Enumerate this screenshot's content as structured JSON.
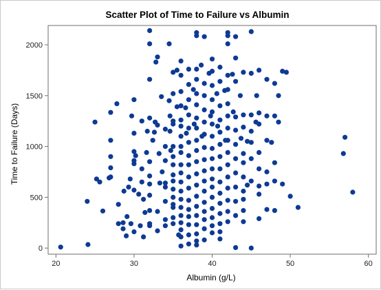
{
  "chart_data": {
    "type": "scatter",
    "title": "Scatter Plot of Time to Failure vs Albumin",
    "xlabel": "Albumin (g/L)",
    "ylabel": "Time to Failure (Days)",
    "xlim": [
      19,
      61
    ],
    "ylim": [
      -60,
      2190
    ],
    "xticks": [
      20,
      30,
      40,
      50,
      60
    ],
    "yticks": [
      0,
      500,
      1000,
      1500,
      2000
    ],
    "grid": false,
    "marker_color": "#0d3a94",
    "points": [
      [
        20.6,
        10
      ],
      [
        24.1,
        35
      ],
      [
        24.0,
        460
      ],
      [
        25.0,
        1240
      ],
      [
        25.2,
        680
      ],
      [
        25.6,
        650
      ],
      [
        26.0,
        365
      ],
      [
        26.8,
        690
      ],
      [
        27.0,
        700
      ],
      [
        27.0,
        790
      ],
      [
        27.0,
        900
      ],
      [
        27.0,
        1060
      ],
      [
        27.0,
        1335
      ],
      [
        27.8,
        1420
      ],
      [
        28.0,
        430
      ],
      [
        28.0,
        240
      ],
      [
        28.6,
        250
      ],
      [
        28.6,
        190
      ],
      [
        28.7,
        560
      ],
      [
        29.0,
        120
      ],
      [
        29.1,
        310
      ],
      [
        29.3,
        600
      ],
      [
        29.5,
        680
      ],
      [
        29.6,
        240
      ],
      [
        29.7,
        1300
      ],
      [
        30.0,
        160
      ],
      [
        30.0,
        570
      ],
      [
        30.0,
        830
      ],
      [
        30.0,
        860
      ],
      [
        30.0,
        950
      ],
      [
        30.0,
        1130
      ],
      [
        30.0,
        1460
      ],
      [
        30.2,
        910
      ],
      [
        30.6,
        530
      ],
      [
        30.8,
        220
      ],
      [
        31.0,
        650
      ],
      [
        31.0,
        780
      ],
      [
        31.0,
        1250
      ],
      [
        31.2,
        110
      ],
      [
        31.2,
        480
      ],
      [
        31.4,
        350
      ],
      [
        31.6,
        940
      ],
      [
        31.7,
        1150
      ],
      [
        32.0,
        2140
      ],
      [
        32.0,
        2010
      ],
      [
        32.0,
        1660
      ],
      [
        32.0,
        1280
      ],
      [
        32.0,
        850
      ],
      [
        32.0,
        710
      ],
      [
        32.0,
        630
      ],
      [
        32.0,
        520
      ],
      [
        32.0,
        370
      ],
      [
        32.0,
        240
      ],
      [
        32.0,
        220
      ],
      [
        32.4,
        1060
      ],
      [
        32.6,
        1140
      ],
      [
        32.7,
        1240
      ],
      [
        32.8,
        1830
      ],
      [
        33.0,
        1880
      ],
      [
        33.0,
        1210
      ],
      [
        33.0,
        360
      ],
      [
        33.0,
        170
      ],
      [
        33.2,
        930
      ],
      [
        33.3,
        640
      ],
      [
        33.5,
        1490
      ],
      [
        33.6,
        750
      ],
      [
        34.0,
        1170
      ],
      [
        34.0,
        1000
      ],
      [
        34.0,
        860
      ],
      [
        34.0,
        640
      ],
      [
        34.0,
        600
      ],
      [
        34.0,
        460
      ],
      [
        34.0,
        280
      ],
      [
        34.0,
        220
      ],
      [
        34.5,
        2010
      ],
      [
        34.5,
        1450
      ],
      [
        34.6,
        1300
      ],
      [
        34.6,
        1150
      ],
      [
        34.7,
        960
      ],
      [
        35.0,
        1730
      ],
      [
        35.0,
        1520
      ],
      [
        35.0,
        1250
      ],
      [
        35.0,
        1220
      ],
      [
        35.0,
        1000
      ],
      [
        35.0,
        900
      ],
      [
        35.0,
        820
      ],
      [
        35.0,
        720
      ],
      [
        35.0,
        660
      ],
      [
        35.0,
        580
      ],
      [
        35.0,
        500
      ],
      [
        35.0,
        430
      ],
      [
        35.0,
        400
      ],
      [
        35.0,
        300
      ],
      [
        35.0,
        240
      ],
      [
        35.5,
        1750
      ],
      [
        35.5,
        1390
      ],
      [
        35.7,
        130
      ],
      [
        36.0,
        1840
      ],
      [
        36.0,
        1700
      ],
      [
        36.0,
        1540
      ],
      [
        36.0,
        1400
      ],
      [
        36.0,
        1260
      ],
      [
        36.0,
        1200
      ],
      [
        36.0,
        1100
      ],
      [
        36.0,
        1000
      ],
      [
        36.0,
        940
      ],
      [
        36.0,
        820
      ],
      [
        36.0,
        740
      ],
      [
        36.0,
        650
      ],
      [
        36.0,
        560
      ],
      [
        36.0,
        480
      ],
      [
        36.0,
        400
      ],
      [
        36.0,
        320
      ],
      [
        36.0,
        250
      ],
      [
        36.0,
        180
      ],
      [
        36.0,
        110
      ],
      [
        36.0,
        20
      ],
      [
        36.6,
        1380
      ],
      [
        36.7,
        1130
      ],
      [
        37.0,
        1760
      ],
      [
        37.0,
        1610
      ],
      [
        37.0,
        1460
      ],
      [
        37.0,
        1310
      ],
      [
        37.0,
        1180
      ],
      [
        37.0,
        1040
      ],
      [
        37.0,
        910
      ],
      [
        37.0,
        820
      ],
      [
        37.0,
        700
      ],
      [
        37.0,
        590
      ],
      [
        37.0,
        470
      ],
      [
        37.0,
        380
      ],
      [
        37.0,
        310
      ],
      [
        37.0,
        230
      ],
      [
        37.0,
        130
      ],
      [
        37.0,
        40
      ],
      [
        37.6,
        1560
      ],
      [
        37.7,
        1220
      ],
      [
        38.0,
        2120
      ],
      [
        38.0,
        2090
      ],
      [
        38.0,
        1760
      ],
      [
        38.0,
        1660
      ],
      [
        38.0,
        1520
      ],
      [
        38.0,
        1410
      ],
      [
        38.0,
        1280
      ],
      [
        38.0,
        1180
      ],
      [
        38.0,
        1060
      ],
      [
        38.0,
        960
      ],
      [
        38.0,
        850
      ],
      [
        38.0,
        730
      ],
      [
        38.0,
        620
      ],
      [
        38.0,
        510
      ],
      [
        38.0,
        410
      ],
      [
        38.0,
        320
      ],
      [
        38.0,
        230
      ],
      [
        38.0,
        140
      ],
      [
        38.0,
        70
      ],
      [
        38.0,
        30
      ],
      [
        38.6,
        1800
      ],
      [
        38.7,
        1100
      ],
      [
        39.0,
        2080
      ],
      [
        39.0,
        1620
      ],
      [
        39.0,
        1500
      ],
      [
        39.0,
        1360
      ],
      [
        39.0,
        1240
      ],
      [
        39.0,
        1120
      ],
      [
        39.0,
        990
      ],
      [
        39.0,
        870
      ],
      [
        39.0,
        760
      ],
      [
        39.0,
        660
      ],
      [
        39.0,
        560
      ],
      [
        39.0,
        450
      ],
      [
        39.0,
        360
      ],
      [
        39.0,
        280
      ],
      [
        39.0,
        190
      ],
      [
        39.0,
        80
      ],
      [
        39.6,
        1720
      ],
      [
        39.8,
        1300
      ],
      [
        40.0,
        1860
      ],
      [
        40.0,
        1740
      ],
      [
        40.0,
        1600
      ],
      [
        40.0,
        1460
      ],
      [
        40.0,
        1340
      ],
      [
        40.0,
        1220
      ],
      [
        40.0,
        1100
      ],
      [
        40.0,
        980
      ],
      [
        40.0,
        880
      ],
      [
        40.0,
        780
      ],
      [
        40.0,
        680
      ],
      [
        40.0,
        600
      ],
      [
        40.0,
        500
      ],
      [
        40.0,
        390
      ],
      [
        40.0,
        300
      ],
      [
        40.0,
        220
      ],
      [
        40.0,
        150
      ],
      [
        40.6,
        1520
      ],
      [
        40.7,
        1200
      ],
      [
        41.0,
        1780
      ],
      [
        41.0,
        1640
      ],
      [
        41.0,
        1400
      ],
      [
        41.0,
        1260
      ],
      [
        41.0,
        1140
      ],
      [
        41.0,
        1020
      ],
      [
        41.0,
        900
      ],
      [
        41.0,
        780
      ],
      [
        41.0,
        650
      ],
      [
        41.0,
        540
      ],
      [
        41.0,
        440
      ],
      [
        41.0,
        340
      ],
      [
        41.0,
        240
      ],
      [
        41.0,
        160
      ],
      [
        41.0,
        90
      ],
      [
        41.6,
        1550
      ],
      [
        41.7,
        1060
      ],
      [
        42.0,
        2120
      ],
      [
        42.0,
        2090
      ],
      [
        42.0,
        2010
      ],
      [
        42.0,
        1700
      ],
      [
        42.0,
        1560
      ],
      [
        42.0,
        1420
      ],
      [
        42.0,
        1300
      ],
      [
        42.0,
        1180
      ],
      [
        42.0,
        1060
      ],
      [
        42.0,
        940
      ],
      [
        42.0,
        820
      ],
      [
        42.0,
        700
      ],
      [
        42.0,
        590
      ],
      [
        42.0,
        470
      ],
      [
        42.0,
        360
      ],
      [
        42.0,
        260
      ],
      [
        42.6,
        1710
      ],
      [
        42.7,
        1340
      ],
      [
        43.0,
        2080
      ],
      [
        43.0,
        1870
      ],
      [
        43.0,
        1640
      ],
      [
        43.0,
        1290
      ],
      [
        43.0,
        1160
      ],
      [
        43.0,
        1020
      ],
      [
        43.0,
        880
      ],
      [
        43.0,
        740
      ],
      [
        43.0,
        600
      ],
      [
        43.0,
        460
      ],
      [
        43.0,
        320
      ],
      [
        43.0,
        5
      ],
      [
        43.6,
        1500
      ],
      [
        43.7,
        1080
      ],
      [
        44.0,
        1730
      ],
      [
        44.0,
        1310
      ],
      [
        44.0,
        1190
      ],
      [
        44.0,
        930
      ],
      [
        44.0,
        840
      ],
      [
        44.0,
        700
      ],
      [
        44.0,
        560
      ],
      [
        44.0,
        480
      ],
      [
        44.0,
        370
      ],
      [
        44.0,
        260
      ],
      [
        44.5,
        1050
      ],
      [
        44.5,
        620
      ],
      [
        45.0,
        2130
      ],
      [
        45.0,
        1720
      ],
      [
        45.0,
        1310
      ],
      [
        45.0,
        1150
      ],
      [
        45.0,
        1040
      ],
      [
        45.0,
        880
      ],
      [
        45.0,
        660
      ],
      [
        45.0,
        0
      ],
      [
        45.6,
        1240
      ],
      [
        45.7,
        1500
      ],
      [
        46.0,
        1750
      ],
      [
        46.0,
        1330
      ],
      [
        46.0,
        1220
      ],
      [
        46.0,
        940
      ],
      [
        46.0,
        780
      ],
      [
        46.0,
        610
      ],
      [
        46.0,
        530
      ],
      [
        46.0,
        290
      ],
      [
        47.0,
        1660
      ],
      [
        47.0,
        1300
      ],
      [
        47.0,
        1060
      ],
      [
        47.0,
        750
      ],
      [
        47.0,
        630
      ],
      [
        47.0,
        380
      ],
      [
        47.6,
        1040
      ],
      [
        48.0,
        1620
      ],
      [
        48.0,
        1300
      ],
      [
        48.0,
        840
      ],
      [
        48.0,
        660
      ],
      [
        48.0,
        370
      ],
      [
        48.5,
        1500
      ],
      [
        48.5,
        1240
      ],
      [
        49.0,
        1740
      ],
      [
        49.0,
        630
      ],
      [
        49.5,
        1730
      ],
      [
        50.0,
        510
      ],
      [
        51.0,
        400
      ],
      [
        56.8,
        930
      ],
      [
        57.0,
        1090
      ],
      [
        58.0,
        550
      ]
    ]
  }
}
